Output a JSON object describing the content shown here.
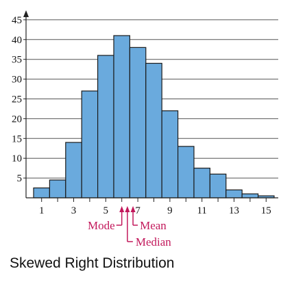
{
  "chart_data": {
    "type": "bar",
    "title": "Skewed Right Distribution",
    "x": [
      1,
      2,
      3,
      4,
      5,
      6,
      7,
      8,
      9,
      10,
      11,
      12,
      13,
      14,
      15
    ],
    "values": [
      2.5,
      4.5,
      14,
      27,
      36,
      41,
      38,
      34,
      22,
      13,
      7.5,
      6,
      2,
      1,
      0.5
    ],
    "xticks": [
      "1",
      "3",
      "5",
      "7",
      "9",
      "11",
      "13",
      "15"
    ],
    "yticks": [
      "5",
      "10",
      "15",
      "20",
      "25",
      "30",
      "35",
      "40",
      "45"
    ],
    "xlim": [
      0.5,
      15.5
    ],
    "ylim": [
      0,
      45
    ],
    "grid": true,
    "bar_color": "#6aaadd",
    "annotations": [
      {
        "label": "Mode",
        "x": 6.0
      },
      {
        "label": "Median",
        "x": 6.35
      },
      {
        "label": "Mean",
        "x": 6.7
      }
    ],
    "annotation_color": "#c2185b"
  }
}
